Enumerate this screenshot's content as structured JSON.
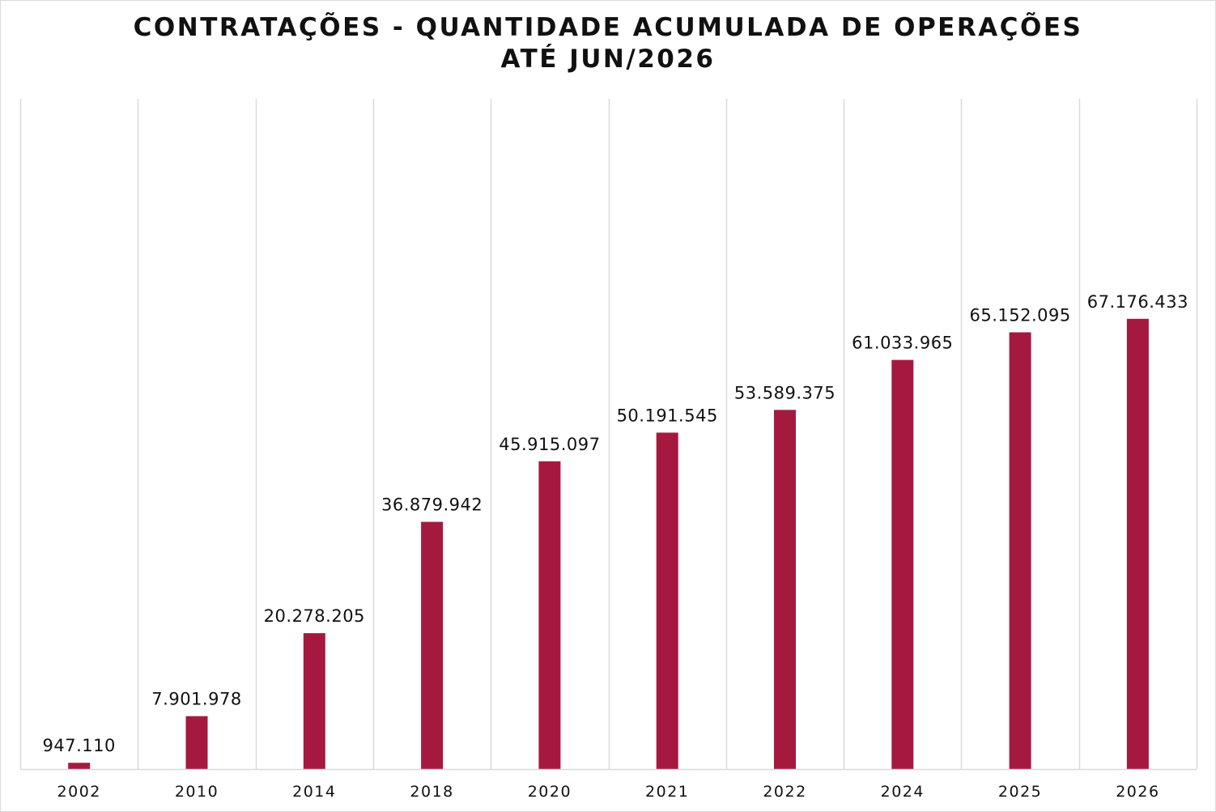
{
  "chart_data": {
    "type": "bar",
    "title": [
      "CONTRATAÇÕES - QUANTIDADE ACUMULADA DE OPERAÇÕES",
      "ATÉ JUN/2026"
    ],
    "categories": [
      "2002",
      "2010",
      "2014",
      "2018",
      "2020",
      "2021",
      "2022",
      "2024",
      "2025",
      "2026"
    ],
    "values": [
      947110,
      7901978,
      20278205,
      36879942,
      45915097,
      50191545,
      53589375,
      61033965,
      65152095,
      67176433
    ],
    "value_labels": [
      "947.110",
      "7.901.978",
      "20.278.205",
      "36.879.942",
      "45.915.097",
      "50.191.545",
      "53.589.375",
      "61.033.965",
      "65.152.095",
      "67.176.433"
    ],
    "xlabel": "",
    "ylabel": "",
    "ylim": [
      0,
      100000000
    ],
    "grid": "vertical",
    "legend": "none",
    "bar_color": "#a6193f",
    "grid_color": "#d9d9d9"
  }
}
